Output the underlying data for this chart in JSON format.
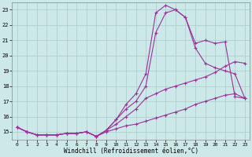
{
  "xlabel": "Windchill (Refroidissement éolien,°C)",
  "xlim": [
    -0.5,
    23.5
  ],
  "ylim": [
    14.5,
    23.5
  ],
  "xticks": [
    0,
    1,
    2,
    3,
    4,
    5,
    6,
    7,
    8,
    9,
    10,
    11,
    12,
    13,
    14,
    15,
    16,
    17,
    18,
    19,
    20,
    21,
    22,
    23
  ],
  "yticks": [
    15,
    16,
    17,
    18,
    19,
    20,
    21,
    22,
    23
  ],
  "bg_color": "#cde8e8",
  "grid_color": "#aacccc",
  "line_color": "#993399",
  "lines": [
    [
      15.3,
      15.0,
      14.8,
      14.8,
      14.8,
      14.9,
      14.9,
      15.0,
      14.7,
      15.1,
      15.8,
      16.8,
      17.5,
      18.8,
      22.8,
      23.3,
      23.0,
      22.5,
      20.8,
      21.0,
      20.8,
      20.9,
      17.3,
      17.2
    ],
    [
      15.3,
      15.0,
      14.8,
      14.8,
      14.8,
      14.9,
      14.9,
      15.0,
      14.7,
      15.1,
      15.8,
      16.5,
      17.0,
      18.0,
      21.5,
      22.8,
      23.0,
      22.5,
      20.5,
      19.5,
      19.2,
      19.0,
      18.8,
      17.2
    ],
    [
      15.3,
      15.0,
      14.8,
      14.8,
      14.8,
      14.9,
      14.9,
      15.0,
      14.7,
      15.1,
      15.5,
      16.0,
      16.5,
      17.2,
      17.5,
      17.8,
      18.0,
      18.2,
      18.4,
      18.6,
      18.9,
      19.3,
      19.6,
      19.5
    ],
    [
      15.3,
      15.0,
      14.8,
      14.8,
      14.8,
      14.9,
      14.9,
      15.0,
      14.7,
      15.0,
      15.2,
      15.4,
      15.5,
      15.7,
      15.9,
      16.1,
      16.3,
      16.5,
      16.8,
      17.0,
      17.2,
      17.4,
      17.5,
      17.2
    ]
  ],
  "x": [
    0,
    1,
    2,
    3,
    4,
    5,
    6,
    7,
    8,
    9,
    10,
    11,
    12,
    13,
    14,
    15,
    16,
    17,
    18,
    19,
    20,
    21,
    22,
    23
  ]
}
